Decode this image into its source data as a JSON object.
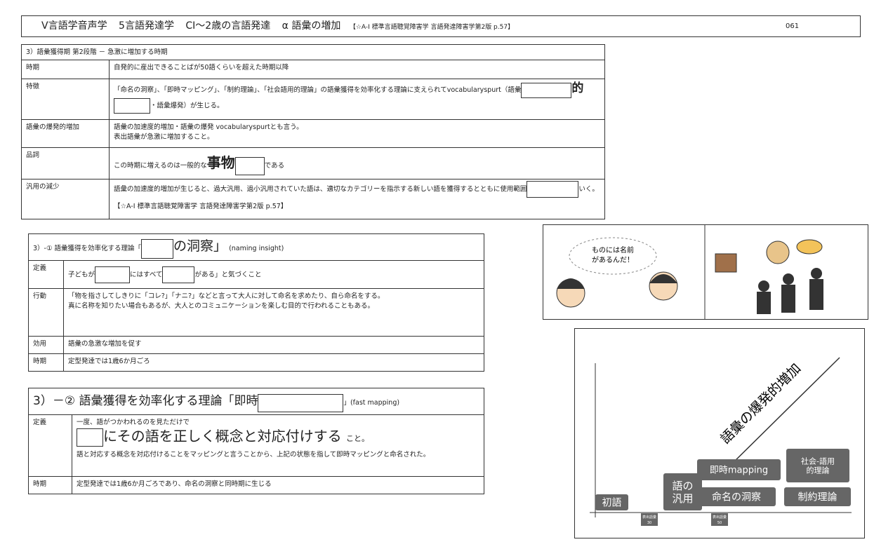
{
  "header": {
    "parts": [
      "V言語学音声学",
      "5言語発達学",
      "CⅠ～2歳の言語発達",
      "α 語彙の増加"
    ],
    "reference": "【☆A-Ⅰ 標準言語聴覚障害学 言語発達障害学第2版 p.57】",
    "page": "061"
  },
  "table1": {
    "title": "3）語彙獲得期 第2段階 － 急激に増加する時期",
    "rows": [
      [
        "時期",
        "自発的に産出できることばが50語くらいを超えた時期以降"
      ],
      [
        "特徴",
        "「命名の洞察」、「即時マッピング」、「制約理論」、「社会語用的理論」の語彙獲得を効率化する理論に支えられてvocabularyspurt（語彙",
        "的",
        "・語彙爆発）が生じる。"
      ],
      [
        "語彙の爆発的増加",
        "語彙の加速度的増加・語彙の爆発 vocabularyspurtとも言う。",
        "表出語彙が急激に増加すること。"
      ],
      [
        "品詞",
        "この時期に増えるのは一般的な",
        "事物",
        "である"
      ],
      [
        "汎用の減少",
        "語彙の加速度的増加が生じると、過大汎用、過小汎用されていた語は、適切なカテゴリーを指示する新しい語を獲得するとともに使用範囲",
        "いく。【☆A-Ⅰ 標準言語聴覚障害学 言語発達障害学第2版 p.57】"
      ]
    ]
  },
  "table2": {
    "title": [
      "3）-① 語彙獲得を効率化する理論「",
      "の洞察」",
      "(naming insight)"
    ],
    "rows": [
      [
        "定義",
        "子どもが",
        "にはすべて",
        "がある」と気づくこと"
      ],
      [
        "行動",
        "「物を指さしてしきりに「コレ?」「ナニ?」などと言って大人に対して命名を求めたり、自ら命名をする。",
        "真に名称を知りたい場合もあるが、大人とのコミュニケーションを楽しむ目的で行われることもある。"
      ],
      [
        "効用",
        "語彙の急激な増加を促す"
      ],
      [
        "時期",
        "定型発達では1歳6か月ごろ"
      ]
    ]
  },
  "table3": {
    "title": [
      "3）－② 語彙獲得を効率化する理論「即時",
      "」(fast mapping)"
    ],
    "rows": [
      [
        "定義",
        "一度、語がつかわれるのを見ただけで",
        "にその語を正しく概念と対応付けする",
        "こと。",
        "語と対応する概念を対応付けることをマッピングと言うことから、上記の状態を指して即時マッピングと命名された。"
      ],
      [
        "時期",
        "定型発達では1歳6か月ごろであり、命名の洞察と同時期に生じる"
      ]
    ]
  },
  "illustration": {
    "speech": [
      "ものには名前",
      "があるんだ！"
    ]
  },
  "diagram": {
    "diagonal": "語彙の爆発的増加",
    "boxes": [
      "初語",
      [
        "語の",
        "汎用"
      ],
      "命名の洞察",
      "即時mapping",
      "制約理論",
      [
        "社会-語用",
        "的理論"
      ]
    ],
    "markers": [
      [
        "表出語彙",
        "30"
      ],
      [
        "表出語彙",
        "50"
      ]
    ]
  }
}
